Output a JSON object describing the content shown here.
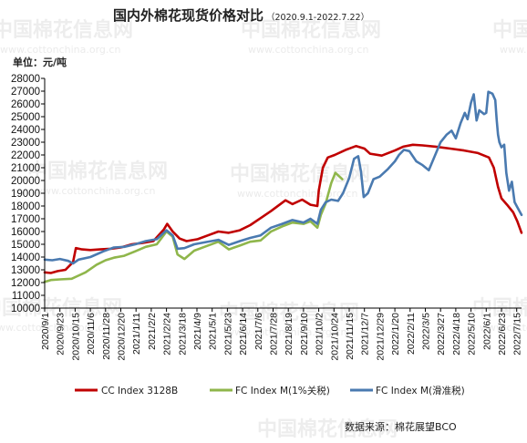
{
  "title": "国内外棉花现货价格对比",
  "subtitle": "（2020.9.1-2022.7.22）",
  "unit_label": "单位：元/吨",
  "source": "数据来源：棉花展望BCO",
  "watermark": {
    "text": "中国棉花信息网",
    "url": "www.cottonchina.org.cn"
  },
  "colors": {
    "cc": "#c00000",
    "fc1": "#8fb64b",
    "fc2": "#4a7ab0",
    "axis": "#000000"
  },
  "chart_data": {
    "type": "line",
    "title": "国内外棉花现货价格对比",
    "ylabel": "单位：元/吨",
    "xlabel": "",
    "ylim": [
      10000,
      28000
    ],
    "yticks": [
      10000,
      11000,
      12000,
      13000,
      14000,
      15000,
      16000,
      17000,
      18000,
      19000,
      20000,
      21000,
      22000,
      23000,
      24000,
      25000,
      26000,
      27000,
      28000
    ],
    "grid": false,
    "legend_position": "bottom",
    "x_tick_labels": [
      "2020/9/1",
      "2020/9/23",
      "2020/10/15",
      "2020/11/6",
      "2020/11/28",
      "2020/12/20",
      "2021/1/11",
      "2021/2/2",
      "2021/2/24",
      "2021/3/18",
      "2021/4/9",
      "2021/5/1",
      "2021/5/23",
      "2021/6/14",
      "2021/7/6",
      "2021/7/28",
      "2021/8/19",
      "2021/9/10",
      "2021/10/2",
      "2021/10/24",
      "2021/11/15",
      "2021/12/7",
      "2021/12/29",
      "2022/1/20",
      "2022/2/11",
      "2022/3/5",
      "2022/3/27",
      "2022/4/18",
      "2022/5/10",
      "2022/6/1",
      "2022/6/23",
      "2022/7/15"
    ],
    "series": [
      {
        "name": "CC Index 3128B",
        "color": "#c00000",
        "points": [
          [
            "2020-09-01",
            12800
          ],
          [
            "2020-09-10",
            12750
          ],
          [
            "2020-09-20",
            12900
          ],
          [
            "2020-10-01",
            13000
          ],
          [
            "2020-10-12",
            13600
          ],
          [
            "2020-10-16",
            14700
          ],
          [
            "2020-10-25",
            14600
          ],
          [
            "2020-11-06",
            14550
          ],
          [
            "2020-11-20",
            14600
          ],
          [
            "2020-12-05",
            14650
          ],
          [
            "2020-12-20",
            14750
          ],
          [
            "2021-01-05",
            15000
          ],
          [
            "2021-01-20",
            15100
          ],
          [
            "2021-02-05",
            15250
          ],
          [
            "2021-02-20",
            16150
          ],
          [
            "2021-02-25",
            16600
          ],
          [
            "2021-03-05",
            16000
          ],
          [
            "2021-03-15",
            15450
          ],
          [
            "2021-03-25",
            15250
          ],
          [
            "2021-04-10",
            15400
          ],
          [
            "2021-04-25",
            15700
          ],
          [
            "2021-05-10",
            16000
          ],
          [
            "2021-05-25",
            15900
          ],
          [
            "2021-06-10",
            16100
          ],
          [
            "2021-06-25",
            16500
          ],
          [
            "2021-07-10",
            17050
          ],
          [
            "2021-07-25",
            17600
          ],
          [
            "2021-08-05",
            18050
          ],
          [
            "2021-08-15",
            18450
          ],
          [
            "2021-08-25",
            18150
          ],
          [
            "2021-09-08",
            18500
          ],
          [
            "2021-09-20",
            18100
          ],
          [
            "2021-09-30",
            18000
          ],
          [
            "2021-10-02",
            19200
          ],
          [
            "2021-10-08",
            21000
          ],
          [
            "2021-10-15",
            21800
          ],
          [
            "2021-10-25",
            22000
          ],
          [
            "2021-11-10",
            22400
          ],
          [
            "2021-11-25",
            22700
          ],
          [
            "2021-12-07",
            22500
          ],
          [
            "2021-12-15",
            22100
          ],
          [
            "2022-01-01",
            21950
          ],
          [
            "2022-01-20",
            22350
          ],
          [
            "2022-02-01",
            22650
          ],
          [
            "2022-02-15",
            22800
          ],
          [
            "2022-03-01",
            22750
          ],
          [
            "2022-03-20",
            22650
          ],
          [
            "2022-04-10",
            22500
          ],
          [
            "2022-04-30",
            22350
          ],
          [
            "2022-05-20",
            22150
          ],
          [
            "2022-06-05",
            21800
          ],
          [
            "2022-06-12",
            21000
          ],
          [
            "2022-06-18",
            19500
          ],
          [
            "2022-06-23",
            18600
          ],
          [
            "2022-07-01",
            18100
          ],
          [
            "2022-07-10",
            17500
          ],
          [
            "2022-07-16",
            16800
          ],
          [
            "2022-07-22",
            15900
          ]
        ]
      },
      {
        "name": "FC Index M(1%关税)",
        "color": "#8fb64b",
        "points": [
          [
            "2020-09-01",
            12050
          ],
          [
            "2020-09-10",
            12200
          ],
          [
            "2020-09-23",
            12250
          ],
          [
            "2020-10-10",
            12300
          ],
          [
            "2020-10-18",
            12500
          ],
          [
            "2020-10-30",
            12800
          ],
          [
            "2020-11-15",
            13400
          ],
          [
            "2020-11-28",
            13750
          ],
          [
            "2020-12-10",
            13950
          ],
          [
            "2020-12-25",
            14100
          ],
          [
            "2021-01-10",
            14450
          ],
          [
            "2021-01-25",
            14800
          ],
          [
            "2021-02-10",
            15000
          ],
          [
            "2021-02-24",
            16000
          ],
          [
            "2021-03-05",
            15600
          ],
          [
            "2021-03-12",
            14200
          ],
          [
            "2021-03-22",
            13850
          ],
          [
            "2021-04-05",
            14500
          ],
          [
            "2021-04-20",
            14800
          ],
          [
            "2021-05-10",
            15200
          ],
          [
            "2021-05-25",
            14600
          ],
          [
            "2021-06-10",
            14900
          ],
          [
            "2021-06-25",
            15200
          ],
          [
            "2021-07-10",
            15300
          ],
          [
            "2021-07-25",
            16000
          ],
          [
            "2021-08-10",
            16400
          ],
          [
            "2021-08-25",
            16700
          ],
          [
            "2021-09-10",
            16600
          ],
          [
            "2021-09-20",
            16800
          ],
          [
            "2021-09-30",
            16300
          ],
          [
            "2021-10-05",
            17300
          ],
          [
            "2021-10-12",
            18200
          ],
          [
            "2021-10-20",
            19800
          ],
          [
            "2021-10-26",
            20600
          ],
          [
            "2021-11-05",
            20100
          ]
        ]
      },
      {
        "name": "FC Index M(滑准税)",
        "color": "#4a7ab0",
        "points": [
          [
            "2020-09-01",
            13800
          ],
          [
            "2020-09-12",
            13750
          ],
          [
            "2020-09-23",
            13850
          ],
          [
            "2020-10-05",
            13700
          ],
          [
            "2020-10-12",
            13500
          ],
          [
            "2020-10-20",
            13800
          ],
          [
            "2020-11-06",
            14000
          ],
          [
            "2020-11-25",
            14450
          ],
          [
            "2020-12-10",
            14750
          ],
          [
            "2020-12-25",
            14800
          ],
          [
            "2021-01-10",
            15000
          ],
          [
            "2021-01-25",
            15250
          ],
          [
            "2021-02-10",
            15400
          ],
          [
            "2021-02-24",
            16100
          ],
          [
            "2021-03-05",
            15700
          ],
          [
            "2021-03-12",
            14650
          ],
          [
            "2021-03-22",
            14700
          ],
          [
            "2021-04-05",
            15000
          ],
          [
            "2021-04-20",
            15150
          ],
          [
            "2021-05-10",
            15350
          ],
          [
            "2021-05-25",
            14950
          ],
          [
            "2021-06-10",
            15250
          ],
          [
            "2021-06-25",
            15500
          ],
          [
            "2021-07-10",
            15700
          ],
          [
            "2021-07-25",
            16300
          ],
          [
            "2021-08-10",
            16600
          ],
          [
            "2021-08-25",
            16900
          ],
          [
            "2021-09-10",
            16700
          ],
          [
            "2021-09-20",
            17000
          ],
          [
            "2021-09-30",
            16600
          ],
          [
            "2021-10-05",
            17700
          ],
          [
            "2021-10-12",
            18300
          ],
          [
            "2021-10-20",
            18500
          ],
          [
            "2021-10-30",
            18400
          ],
          [
            "2021-11-06",
            19000
          ],
          [
            "2021-11-15",
            20200
          ],
          [
            "2021-11-22",
            21700
          ],
          [
            "2021-11-28",
            21900
          ],
          [
            "2021-12-02",
            20700
          ],
          [
            "2021-12-06",
            18700
          ],
          [
            "2021-12-12",
            19000
          ],
          [
            "2021-12-20",
            20100
          ],
          [
            "2021-12-29",
            20300
          ],
          [
            "2022-01-10",
            20900
          ],
          [
            "2022-01-20",
            21500
          ],
          [
            "2022-01-26",
            22000
          ],
          [
            "2022-02-02",
            22400
          ],
          [
            "2022-02-10",
            22300
          ],
          [
            "2022-02-20",
            21500
          ],
          [
            "2022-03-01",
            21200
          ],
          [
            "2022-03-10",
            20800
          ],
          [
            "2022-03-20",
            22100
          ],
          [
            "2022-03-27",
            23000
          ],
          [
            "2022-04-05",
            23600
          ],
          [
            "2022-04-12",
            23900
          ],
          [
            "2022-04-18",
            23300
          ],
          [
            "2022-04-25",
            24500
          ],
          [
            "2022-05-01",
            25300
          ],
          [
            "2022-05-05",
            24800
          ],
          [
            "2022-05-10",
            26100
          ],
          [
            "2022-05-14",
            26750
          ],
          [
            "2022-05-18",
            24700
          ],
          [
            "2022-05-22",
            25500
          ],
          [
            "2022-05-29",
            25200
          ],
          [
            "2022-06-01",
            25300
          ],
          [
            "2022-06-04",
            26950
          ],
          [
            "2022-06-10",
            26800
          ],
          [
            "2022-06-14",
            26300
          ],
          [
            "2022-06-16",
            24800
          ],
          [
            "2022-06-18",
            23600
          ],
          [
            "2022-06-20",
            23000
          ],
          [
            "2022-06-23",
            22600
          ],
          [
            "2022-06-27",
            22800
          ],
          [
            "2022-06-30",
            20600
          ],
          [
            "2022-07-04",
            19200
          ],
          [
            "2022-07-08",
            19900
          ],
          [
            "2022-07-12",
            18300
          ],
          [
            "2022-07-16",
            17900
          ],
          [
            "2022-07-22",
            17300
          ]
        ]
      }
    ]
  }
}
